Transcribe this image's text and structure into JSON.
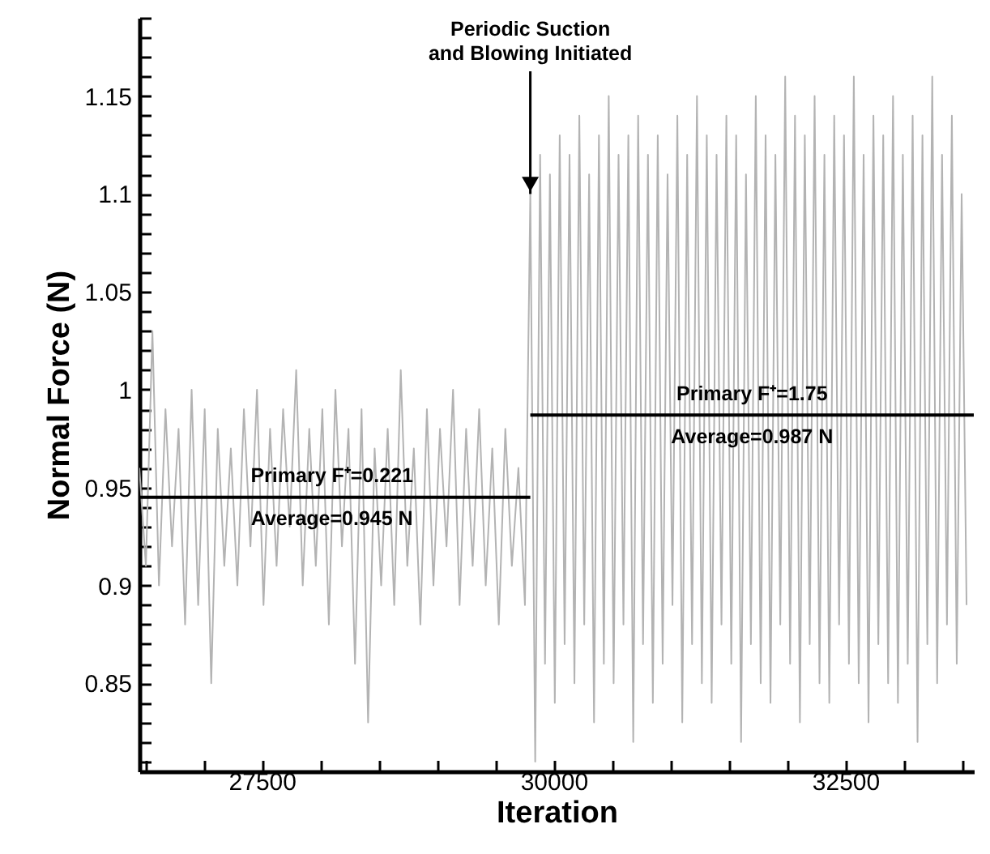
{
  "chart_data": {
    "type": "line",
    "xlabel": "Iteration",
    "ylabel": "Normal Force (N)",
    "xlim": [
      26450,
      33600
    ],
    "ylim": [
      0.805,
      1.19
    ],
    "xticks": [
      {
        "value": 26500,
        "label": null
      },
      {
        "value": 27000,
        "label": null
      },
      27500,
      {
        "value": 28000,
        "label": null
      },
      {
        "value": 28500,
        "label": null
      },
      {
        "value": 29000,
        "label": null
      },
      {
        "value": 29500,
        "label": null
      },
      30000,
      {
        "value": 30500,
        "label": null
      },
      {
        "value": 31000,
        "label": null
      },
      {
        "value": 31500,
        "label": null
      },
      {
        "value": 32000,
        "label": null
      },
      32500,
      {
        "value": 33000,
        "label": null
      },
      {
        "value": 33500,
        "label": null
      }
    ],
    "yticks": [
      {
        "value": 0.81,
        "label": null
      },
      {
        "value": 0.82,
        "label": null
      },
      {
        "value": 0.83,
        "label": null
      },
      {
        "value": 0.84,
        "label": null
      },
      0.85,
      {
        "value": 0.86,
        "label": null
      },
      {
        "value": 0.87,
        "label": null
      },
      {
        "value": 0.88,
        "label": null
      },
      {
        "value": 0.89,
        "label": null
      },
      0.9,
      {
        "value": 0.91,
        "label": null
      },
      {
        "value": 0.92,
        "label": null
      },
      {
        "value": 0.93,
        "label": null
      },
      {
        "value": 0.94,
        "label": null
      },
      0.95,
      {
        "value": 0.96,
        "label": null
      },
      {
        "value": 0.97,
        "label": null
      },
      {
        "value": 0.98,
        "label": null
      },
      {
        "value": 0.99,
        "label": null
      },
      1,
      {
        "value": 1.01,
        "label": null
      },
      {
        "value": 1.02,
        "label": null
      },
      {
        "value": 1.03,
        "label": null
      },
      {
        "value": 1.04,
        "label": null
      },
      1.05,
      {
        "value": 1.06,
        "label": null
      },
      {
        "value": 1.07,
        "label": null
      },
      {
        "value": 1.08,
        "label": null
      },
      {
        "value": 1.09,
        "label": null
      },
      1.1,
      {
        "value": 1.11,
        "label": null
      },
      {
        "value": 1.12,
        "label": null
      },
      {
        "value": 1.13,
        "label": null
      },
      {
        "value": 1.14,
        "label": null
      },
      1.15,
      {
        "value": 1.16,
        "label": null
      },
      {
        "value": 1.17,
        "label": null
      },
      {
        "value": 1.18,
        "label": null
      },
      {
        "value": 1.19,
        "label": null
      }
    ],
    "grid": false,
    "series": [
      {
        "color": "#b3b3b3",
        "x": [
          26450,
          26506,
          26562,
          26618,
          26674,
          26730,
          26786,
          26842,
          26898,
          26954,
          27010,
          27066,
          27122,
          27178,
          27234,
          27290,
          27346,
          27402,
          27458,
          27514,
          27570,
          27626,
          27682,
          27738,
          27794,
          27850,
          27906,
          27962,
          28018,
          28074,
          28130,
          28186,
          28242,
          28298,
          28354,
          28410,
          28466,
          28522,
          28578,
          28634,
          28690,
          28746,
          28802,
          28858,
          28914,
          28970,
          29026,
          29082,
          29138,
          29194,
          29250,
          29306,
          29362,
          29418,
          29474,
          29530,
          29586,
          29642,
          29698,
          29754,
          29800,
          29842,
          29884,
          29926,
          29968,
          30010,
          30052,
          30094,
          30136,
          30178,
          30220,
          30262,
          30304,
          30346,
          30388,
          30430,
          30472,
          30514,
          30556,
          30598,
          30640,
          30682,
          30724,
          30766,
          30808,
          30850,
          30892,
          30934,
          30976,
          31018,
          31060,
          31102,
          31144,
          31186,
          31228,
          31270,
          31312,
          31354,
          31396,
          31438,
          31480,
          31522,
          31564,
          31606,
          31648,
          31690,
          31732,
          31774,
          31816,
          31858,
          31900,
          31942,
          31984,
          32026,
          32068,
          32110,
          32152,
          32194,
          32236,
          32278,
          32320,
          32362,
          32404,
          32446,
          32488,
          32530,
          32572,
          32614,
          32656,
          32698,
          32740,
          32782,
          32824,
          32866,
          32908,
          32950,
          32992,
          33034,
          33076,
          33118,
          33160,
          33202,
          33244,
          33286,
          33328,
          33370,
          33412,
          33454,
          33496,
          33538
        ],
        "values": [
          0.96,
          0.91,
          1.03,
          0.9,
          0.99,
          0.92,
          0.98,
          0.88,
          1.0,
          0.89,
          0.99,
          0.85,
          0.98,
          0.91,
          0.97,
          0.9,
          0.99,
          0.92,
          1.0,
          0.89,
          0.98,
          0.91,
          0.99,
          0.93,
          1.01,
          0.9,
          0.98,
          0.91,
          0.99,
          0.88,
          1.0,
          0.92,
          0.98,
          0.86,
          0.99,
          0.83,
          0.97,
          0.9,
          0.98,
          0.89,
          1.01,
          0.91,
          0.97,
          0.88,
          0.99,
          0.9,
          0.98,
          0.92,
          1.0,
          0.89,
          0.98,
          0.91,
          0.99,
          0.9,
          0.97,
          0.88,
          0.98,
          0.91,
          0.96,
          0.89,
          1.1,
          0.81,
          1.12,
          0.86,
          1.11,
          0.84,
          1.13,
          0.87,
          1.12,
          0.85,
          1.14,
          0.88,
          1.11,
          0.83,
          1.13,
          0.86,
          1.15,
          0.85,
          1.12,
          0.88,
          1.13,
          0.82,
          1.14,
          0.87,
          1.12,
          0.84,
          1.13,
          0.86,
          1.11,
          0.89,
          1.14,
          0.83,
          1.12,
          0.87,
          1.15,
          0.85,
          1.13,
          0.84,
          1.12,
          0.88,
          1.14,
          0.86,
          1.13,
          0.82,
          1.11,
          0.87,
          1.15,
          0.85,
          1.13,
          0.84,
          1.12,
          0.88,
          1.16,
          0.86,
          1.14,
          0.83,
          1.13,
          0.87,
          1.15,
          0.85,
          1.12,
          0.84,
          1.14,
          0.88,
          1.13,
          0.86,
          1.16,
          0.85,
          1.12,
          0.83,
          1.14,
          0.87,
          1.13,
          0.85,
          1.15,
          0.84,
          1.12,
          0.86,
          1.14,
          0.82,
          1.13,
          0.87,
          1.16,
          0.85,
          1.12,
          0.88,
          1.14,
          0.86,
          1.1,
          0.89
        ]
      },
      {
        "color": "#000000",
        "x": [
          26450,
          29800
        ],
        "values": [
          0.945,
          0.945
        ]
      },
      {
        "color": "#000000",
        "x": [
          29800,
          33600
        ],
        "values": [
          0.987,
          0.987
        ]
      }
    ],
    "annotations": [
      {
        "text": "Periodic Suction\nand Blowing Initiated",
        "x": 29800,
        "y": 1.1
      },
      {
        "text": "Primary F⁺=0.221",
        "x": 28100,
        "y": 0.956
      },
      {
        "text": "Average=0.945 N",
        "x": 28100,
        "y": 0.934
      },
      {
        "text": "Primary F⁺=1.75",
        "x": 31700,
        "y": 0.998
      },
      {
        "text": "Average=0.987 N",
        "x": 31700,
        "y": 0.976
      }
    ]
  }
}
